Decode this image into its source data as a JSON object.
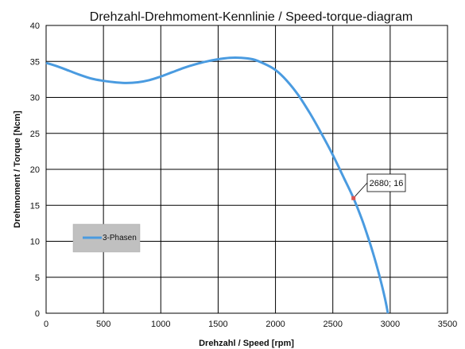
{
  "chart_data": {
    "type": "line",
    "title": "Drehzahl-Drehmoment-Kennlinie / Speed-torque-diagram",
    "xlabel": "Drehzahl / Speed [rpm]",
    "ylabel": "Drehmoment / Torque [Ncm]",
    "xlim": [
      0,
      3500
    ],
    "ylim": [
      0,
      40
    ],
    "xticks": [
      0,
      500,
      1000,
      1500,
      2000,
      2500,
      3000,
      3500
    ],
    "yticks": [
      0,
      5,
      10,
      15,
      20,
      25,
      30,
      35,
      40
    ],
    "grid": true,
    "legend_position": "left-middle",
    "series": [
      {
        "name": "3-Phasen",
        "color": "#4a9be0",
        "x": [
          0,
          100,
          200,
          300,
          400,
          500,
          600,
          700,
          800,
          900,
          1000,
          1100,
          1200,
          1300,
          1400,
          1500,
          1600,
          1700,
          1800,
          1900,
          2000,
          2100,
          2200,
          2300,
          2400,
          2500,
          2600,
          2680,
          2750,
          2800,
          2850,
          2900,
          2950,
          2980
        ],
        "y": [
          34.8,
          34.3,
          33.7,
          33.1,
          32.6,
          32.3,
          32.1,
          32.0,
          32.1,
          32.4,
          32.9,
          33.5,
          34.1,
          34.6,
          35.0,
          35.3,
          35.5,
          35.5,
          35.3,
          34.7,
          33.8,
          32.3,
          30.3,
          27.8,
          25.0,
          22.0,
          18.7,
          16.0,
          13.2,
          10.9,
          8.4,
          5.6,
          2.4,
          0
        ]
      }
    ],
    "annotations": [
      {
        "x": 2680,
        "y": 16,
        "label": "2680; 16",
        "marker_color": "#d9534f"
      }
    ]
  }
}
